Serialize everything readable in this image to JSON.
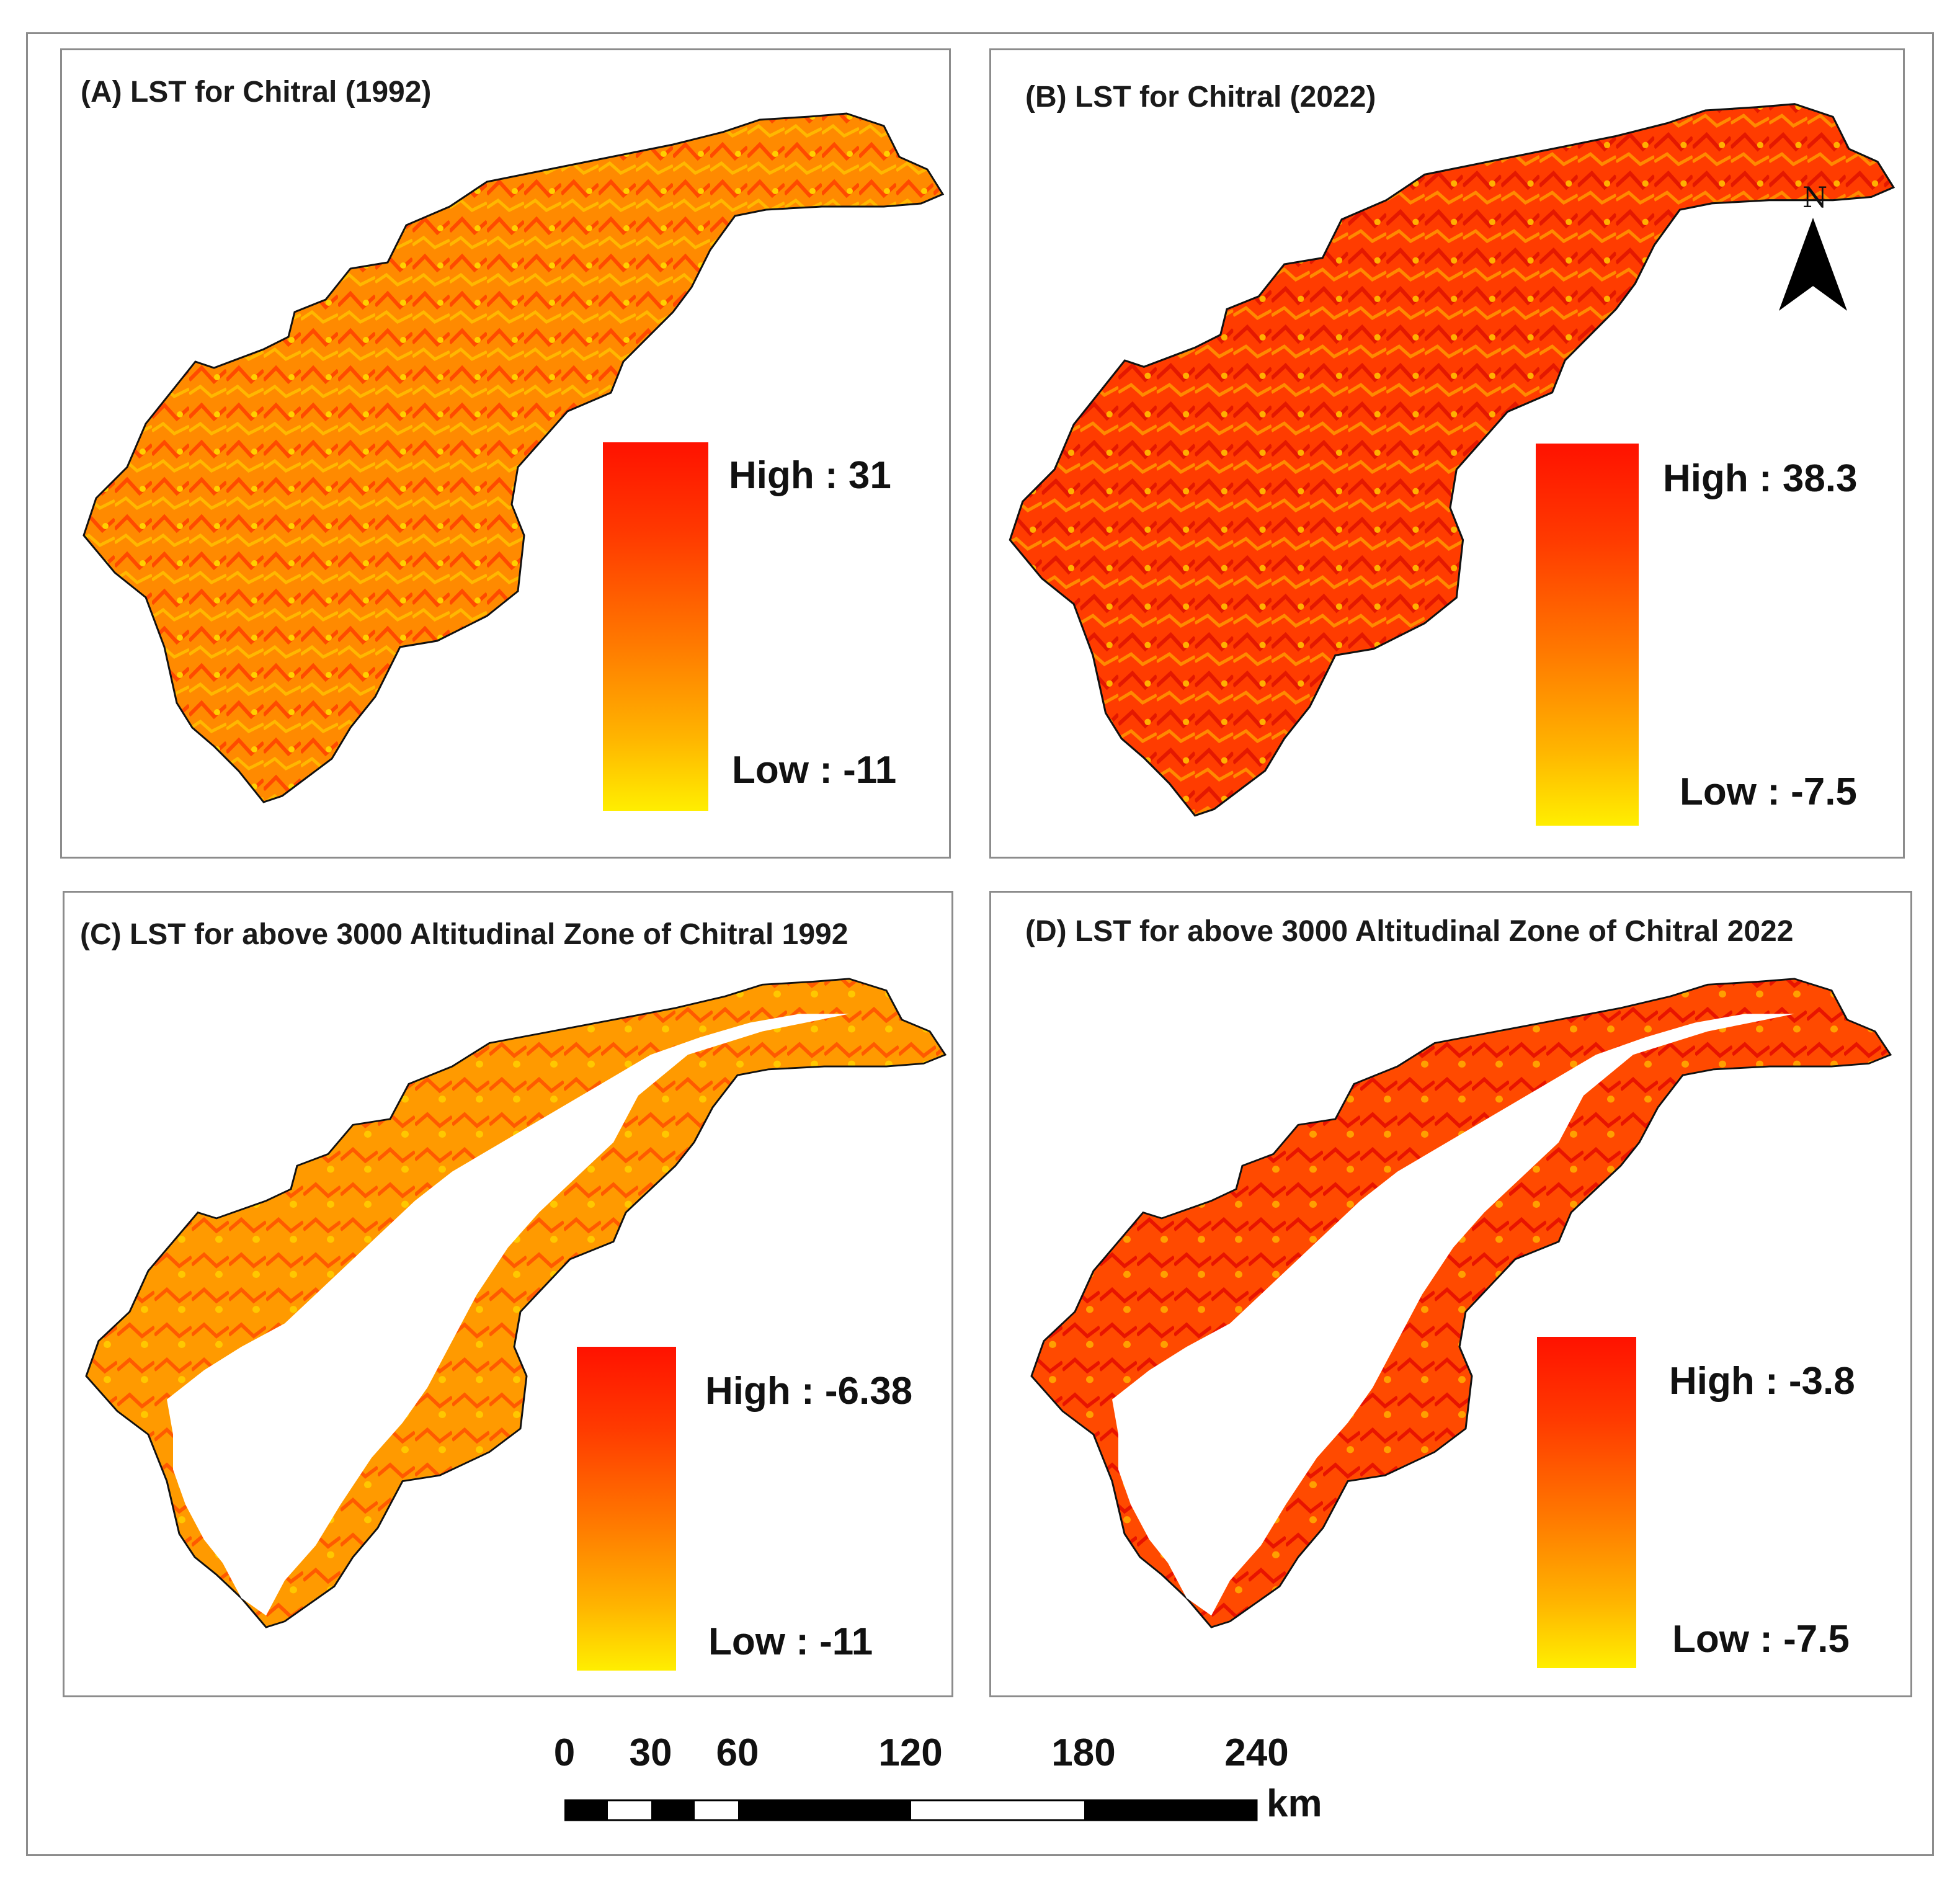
{
  "panels": {
    "a": {
      "title": "(A) LST  for Chitral (1992)",
      "legend_high": "High : 31",
      "legend_low": "Low : -11"
    },
    "b": {
      "title": "(B) LST  for Chitral (2022)",
      "legend_high": "High : 38.3",
      "legend_low": "Low : -7.5"
    },
    "c": {
      "title": "(C) LST for above 3000 Altitudinal Zone of Chitral 1992",
      "legend_high": "High : -6.38",
      "legend_low": "Low : -11"
    },
    "d": {
      "title": "(D) LST for above 3000 Altitudinal Zone of Chitral 2022",
      "legend_high": "High : -3.8",
      "legend_low": "Low : -7.5"
    }
  },
  "north_arrow": {
    "label": "N"
  },
  "scale_bar": {
    "ticks": [
      "0",
      "30",
      "60",
      "120",
      "180",
      "240"
    ],
    "unit": "km"
  },
  "colors": {
    "high": "#ff1200",
    "mid": "#ff7a00",
    "low": "#ffee00",
    "border": "#8c8c8c"
  }
}
